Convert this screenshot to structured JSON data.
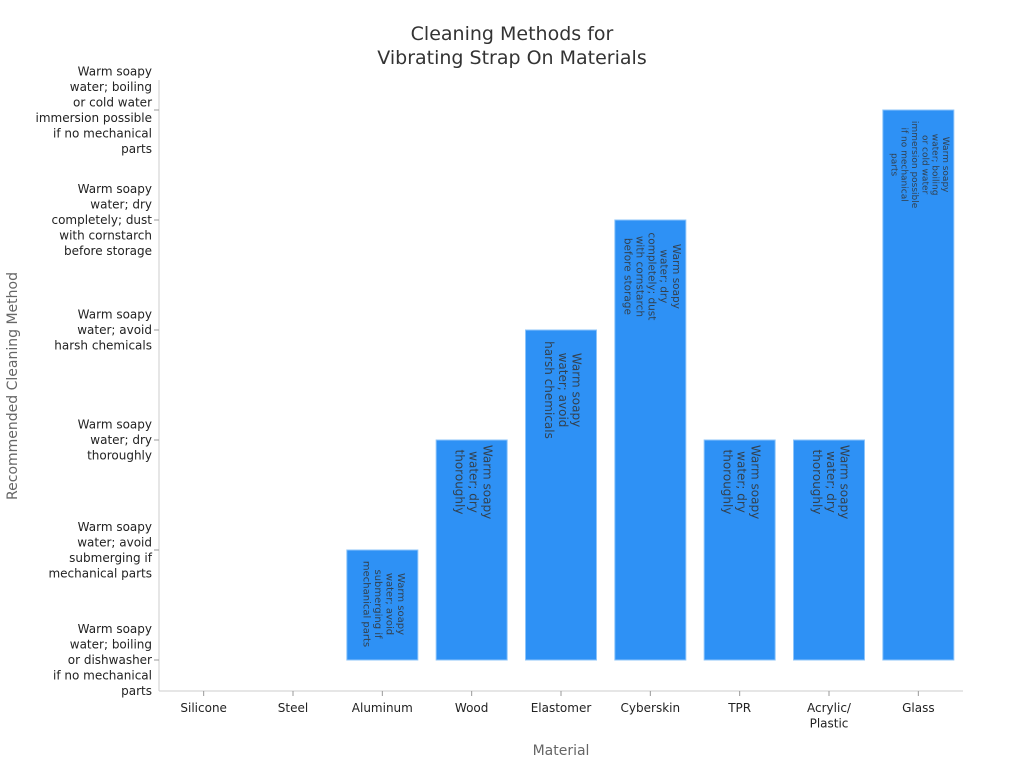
{
  "chart_data": {
    "type": "bar",
    "title": [
      "Cleaning Methods for",
      "Vibrating Strap On Materials"
    ],
    "xlabel": "Material",
    "ylabel": "Recommended Cleaning Method",
    "categories": [
      "Silicone",
      "Steel",
      "Aluminum",
      "Wood",
      "Elastomer",
      "Cyberskin",
      "TPR",
      "Acrylic/\nPlastic",
      "Glass"
    ],
    "y_categories": [
      "Warm soapy\nwater; boiling\nor dishwasher\nif no mechanical\nparts",
      "Warm soapy\nwater; avoid\nsubmerging if\nmechanical parts",
      "Warm soapy\nwater; dry\nthoroughly",
      "Warm soapy\nwater; avoid\nharsh chemicals",
      "Warm soapy\nwater; dry\ncompletely; dust\nwith cornstarch\nbefore storage",
      "Warm soapy\nwater; boiling\nor cold water\nimmersion possible\nif no mechanical\nparts"
    ],
    "values": [
      0,
      0,
      1,
      2,
      3,
      4,
      2,
      2,
      5
    ],
    "bar_labels": [
      "",
      "",
      "Warm soapy\nwater; avoid\nsubmerging if\nmechanical parts",
      "Warm soapy\nwater; dry\nthoroughly",
      "Warm soapy\nwater; avoid\nharsh chemicals",
      "Warm soapy\nwater; dry\ncompletely; dust\nwith cornstarch\nbefore storage",
      "Warm soapy\nwater; dry\nthoroughly",
      "Warm soapy\nwater; dry\nthoroughly",
      "Warm soapy\nwater; boiling\nor cold water\nimmersion possible\nif no mechanical\nparts"
    ],
    "grid": false,
    "legend": "none",
    "colors": {
      "bar": "#2e91f5",
      "bar_edge": "#8cc4fa",
      "label": "#333333"
    }
  }
}
